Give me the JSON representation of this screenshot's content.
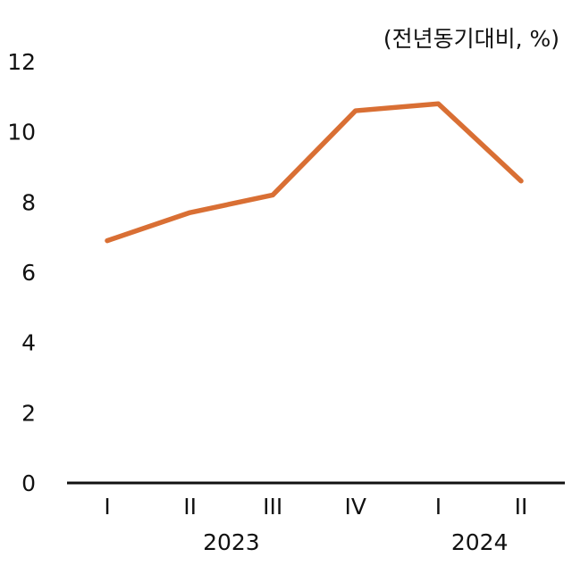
{
  "chart_data": {
    "type": "line",
    "unit_label": "(전년동기대비, %)",
    "categories": [
      "I",
      "II",
      "III",
      "IV",
      "I",
      "II"
    ],
    "groups": [
      {
        "label": "2023",
        "categories": [
          "I",
          "II",
          "III",
          "IV"
        ]
      },
      {
        "label": "2024",
        "categories": [
          "I",
          "II"
        ]
      }
    ],
    "series": [
      {
        "values": [
          6.9,
          7.7,
          8.2,
          10.6,
          10.8,
          8.6
        ],
        "color": "#D96F34"
      }
    ],
    "ylim": [
      0,
      12
    ],
    "yticks": [
      0,
      2,
      4,
      6,
      8,
      10,
      12
    ],
    "grid": false
  }
}
